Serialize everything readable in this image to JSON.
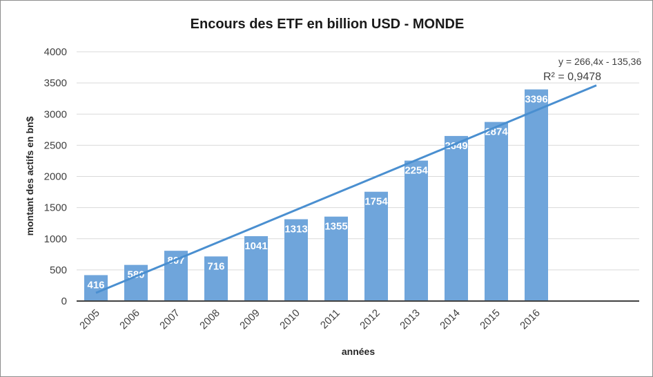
{
  "chart_data": {
    "type": "bar",
    "title": "Encours des ETF en billion USD - MONDE",
    "xlabel": "années",
    "ylabel": "montant des actifs en bn$",
    "categories": [
      "2005",
      "2006",
      "2007",
      "2008",
      "2009",
      "2010",
      "2011",
      "2012",
      "2013",
      "2014",
      "2015",
      "2016"
    ],
    "values": [
      416,
      580,
      807,
      716,
      1041,
      1313,
      1355,
      1754,
      2254,
      2649,
      2874,
      3396
    ],
    "ylim": [
      0,
      4000
    ],
    "yticks": [
      "0",
      "500",
      "1000",
      "1500",
      "2000",
      "2500",
      "3000",
      "3500",
      "4000"
    ],
    "grid": true,
    "legend": "none",
    "bar_color": "#6fa5db",
    "trendline": {
      "type": "linear",
      "equation": "y = 266,4x - 135,36",
      "r2": "R² = 0,9478",
      "slope": 266.4,
      "intercept": -135.36,
      "x_from": 1,
      "x_to": 13.5,
      "color": "#4a8fd0"
    }
  }
}
